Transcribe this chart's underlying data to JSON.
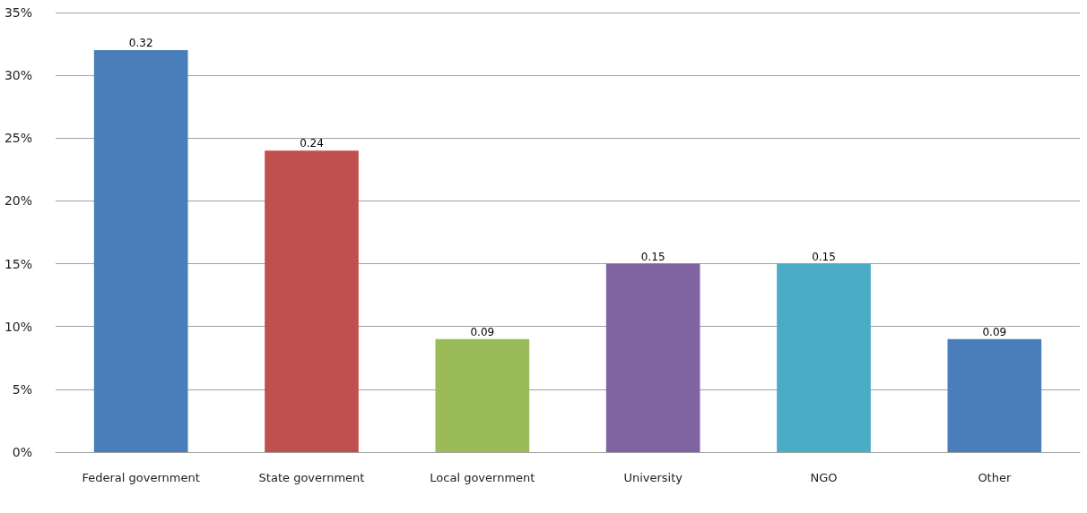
{
  "chart_data": {
    "type": "bar",
    "categories": [
      "Federal government",
      "State government",
      "Local government",
      "University",
      "NGO",
      "Other"
    ],
    "values": [
      0.32,
      0.24,
      0.09,
      0.15,
      0.15,
      0.09
    ],
    "colors": [
      "#4a7ebb",
      "#c0504d",
      "#9bbb59",
      "#8064a2",
      "#4bacc6",
      "#4a7ebb"
    ],
    "ylim": [
      0,
      0.35
    ],
    "yticks": [
      {
        "value": 0,
        "label": "0%"
      },
      {
        "value": 0.05,
        "label": "5%"
      },
      {
        "value": 0.1,
        "label": "10%"
      },
      {
        "value": 0.15,
        "label": "15%"
      },
      {
        "value": 0.2,
        "label": "20%"
      },
      {
        "value": 0.25,
        "label": "25%"
      },
      {
        "value": 0.3,
        "label": "30%"
      },
      {
        "value": 0.35,
        "label": "35%"
      }
    ],
    "grid": true,
    "data_labels": true
  }
}
